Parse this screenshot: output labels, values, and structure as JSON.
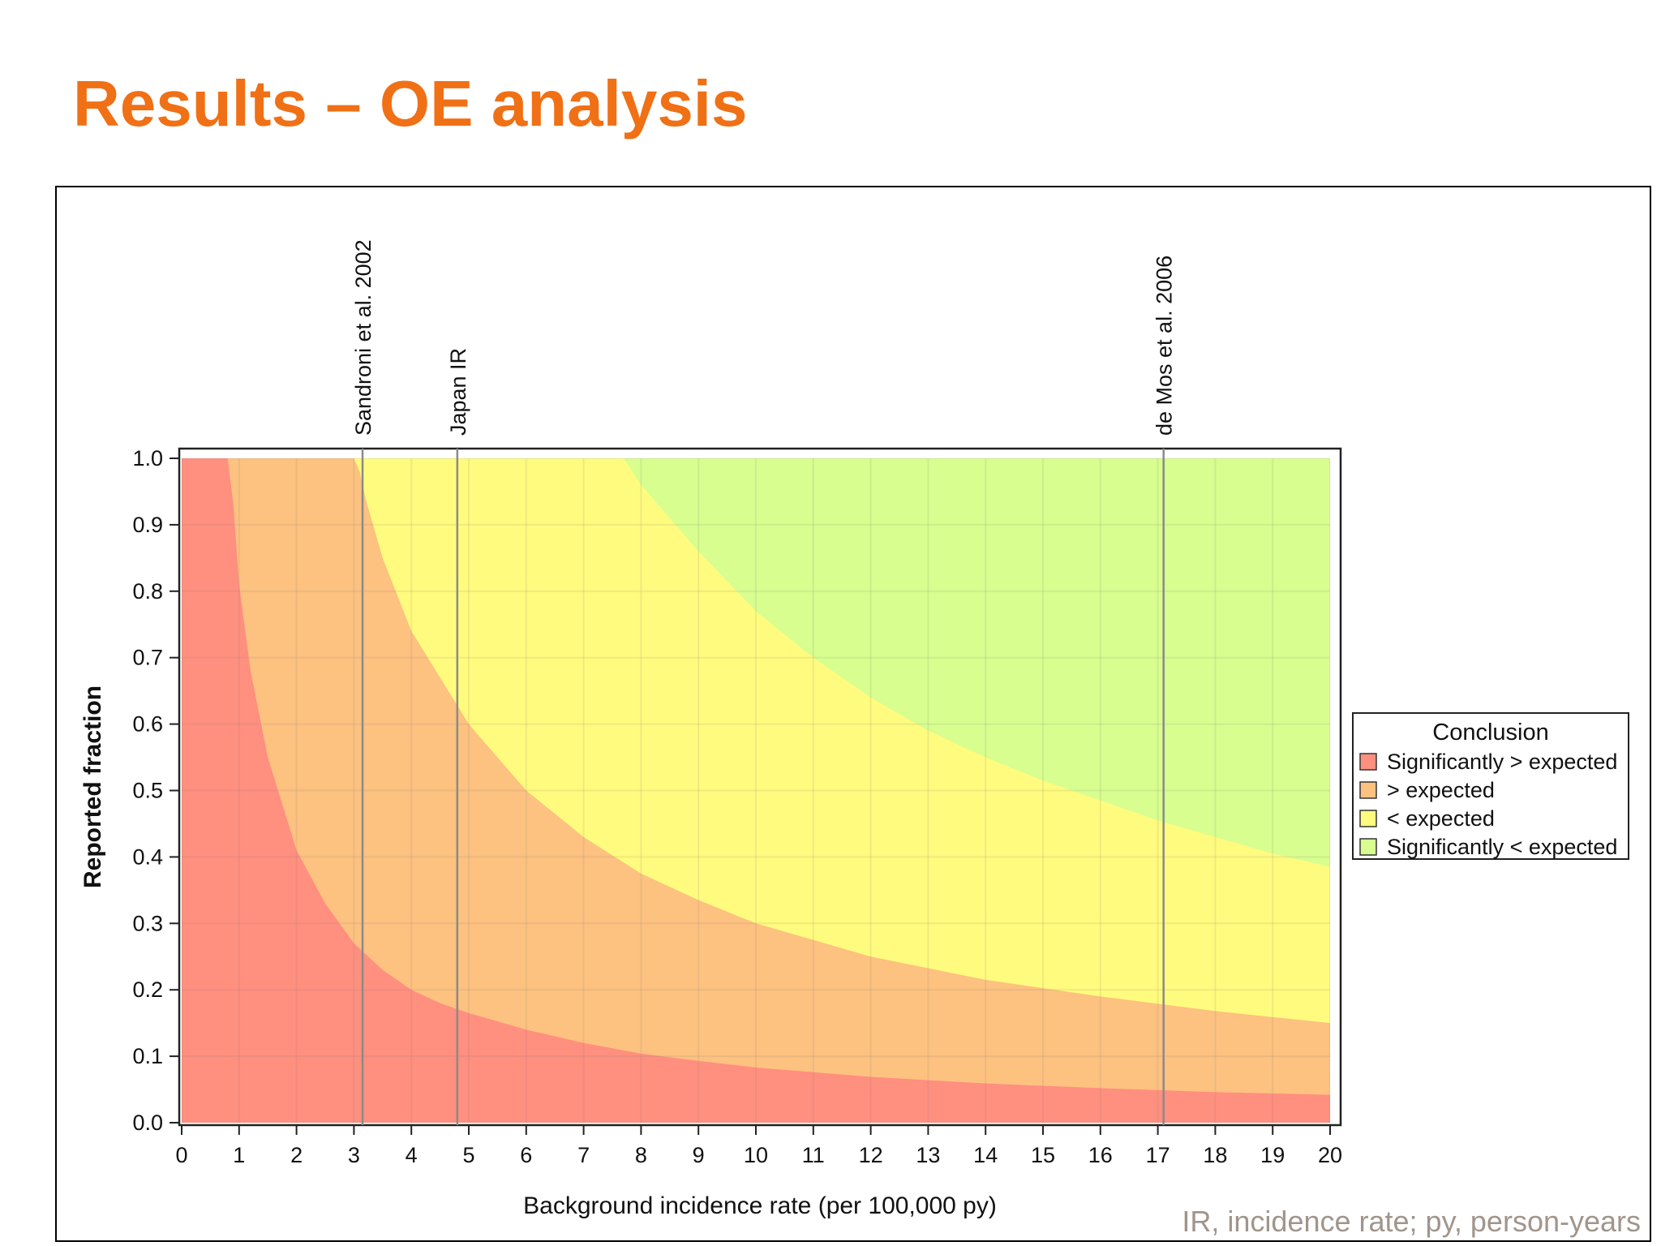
{
  "slide": {
    "title": "Results – OE analysis",
    "footnote": "IR, incidence rate; py, person-years"
  },
  "chart_data": {
    "type": "area",
    "xlabel": "Background incidence rate (per 100,000 py)",
    "ylabel": "Reported fraction",
    "xlim": [
      0,
      20
    ],
    "ylim": [
      0,
      1.0
    ],
    "x_ticks": [
      0,
      1,
      2,
      3,
      4,
      5,
      6,
      7,
      8,
      9,
      10,
      11,
      12,
      13,
      14,
      15,
      16,
      17,
      18,
      19,
      20
    ],
    "y_ticks": [
      0.0,
      0.1,
      0.2,
      0.3,
      0.4,
      0.5,
      0.6,
      0.7,
      0.8,
      0.9,
      1.0
    ],
    "grid": true,
    "legend_position": "right",
    "legend_title": "Conclusion",
    "regions": [
      {
        "name": "Significantly > expected",
        "color": "#ff8f7f"
      },
      {
        "name": "> expected",
        "color": "#fdc180"
      },
      {
        "name": "< expected",
        "color": "#fffb7e"
      },
      {
        "name": "Significantly < expected",
        "color": "#d7fe8f"
      }
    ],
    "boundaries": [
      {
        "between": [
          "Significantly > expected",
          "> expected"
        ],
        "x": [
          0.8,
          0.9,
          1.0,
          1.2,
          1.5,
          2.0,
          2.5,
          3.0,
          3.5,
          4.0,
          4.5,
          5.0,
          6.0,
          7.0,
          8.0,
          9.0,
          10.0,
          12.0,
          14.0,
          16.0,
          18.0,
          20.0
        ],
        "y": [
          1.0,
          0.93,
          0.81,
          0.68,
          0.55,
          0.41,
          0.33,
          0.27,
          0.23,
          0.2,
          0.18,
          0.165,
          0.14,
          0.12,
          0.104,
          0.093,
          0.083,
          0.069,
          0.059,
          0.052,
          0.046,
          0.042
        ]
      },
      {
        "between": [
          "> expected",
          "< expected"
        ],
        "x": [
          3.0,
          3.1,
          3.2,
          3.5,
          4.0,
          4.5,
          5.0,
          6.0,
          7.0,
          8.0,
          9.0,
          10.0,
          12.0,
          14.0,
          16.0,
          18.0,
          20.0
        ],
        "y": [
          1.0,
          0.98,
          0.94,
          0.85,
          0.74,
          0.67,
          0.6,
          0.5,
          0.43,
          0.375,
          0.335,
          0.3,
          0.25,
          0.215,
          0.19,
          0.168,
          0.15
        ]
      },
      {
        "between": [
          "< expected",
          "Significantly < expected"
        ],
        "x": [
          7.7,
          8.0,
          9.0,
          10.0,
          11.0,
          12.0,
          13.0,
          14.0,
          15.0,
          16.0,
          17.0,
          18.0,
          19.0,
          20.0
        ],
        "y": [
          1.0,
          0.96,
          0.86,
          0.77,
          0.7,
          0.64,
          0.59,
          0.55,
          0.515,
          0.485,
          0.455,
          0.43,
          0.405,
          0.385
        ]
      }
    ],
    "reference_lines": [
      {
        "label": "Sandroni et al. 2002",
        "x": 3.15
      },
      {
        "label": "Japan IR",
        "x": 4.8
      },
      {
        "label": "de Mos et al. 2006",
        "x": 17.1
      }
    ]
  }
}
